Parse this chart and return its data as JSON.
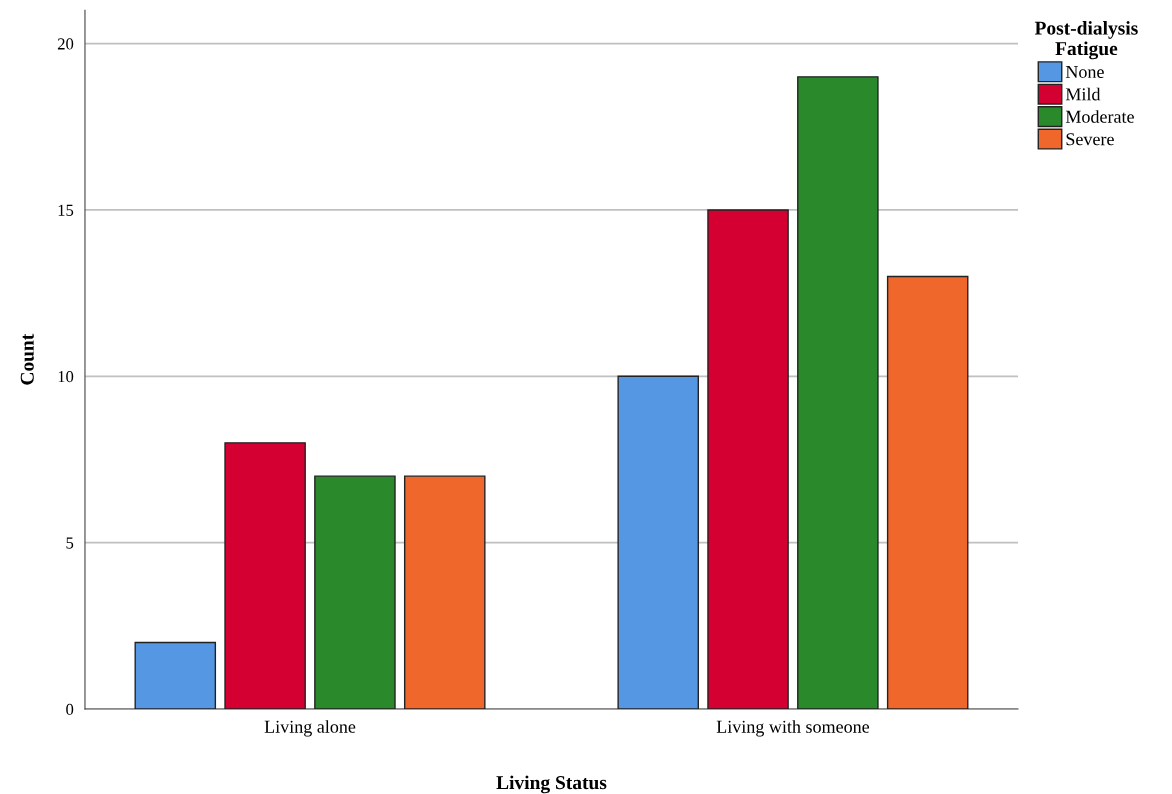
{
  "chart_data": {
    "type": "bar",
    "xlabel": "Living Status",
    "ylabel": "Count",
    "legend_title": "Post-dialysis\nFatigue",
    "categories": [
      "Living alone",
      "Living with someone"
    ],
    "series": [
      {
        "name": "None",
        "color": "#5597e2",
        "values": [
          2,
          10
        ]
      },
      {
        "name": "Mild",
        "color": "#d50032",
        "values": [
          8,
          15
        ]
      },
      {
        "name": "Moderate",
        "color": "#2a8a2b",
        "values": [
          7,
          19
        ]
      },
      {
        "name": "Severe",
        "color": "#f0672b",
        "values": [
          7,
          13
        ]
      }
    ],
    "ylim": [
      0,
      21
    ],
    "yticks": [
      0,
      5,
      10,
      15,
      20
    ],
    "grid": "y",
    "legend": "top right"
  }
}
